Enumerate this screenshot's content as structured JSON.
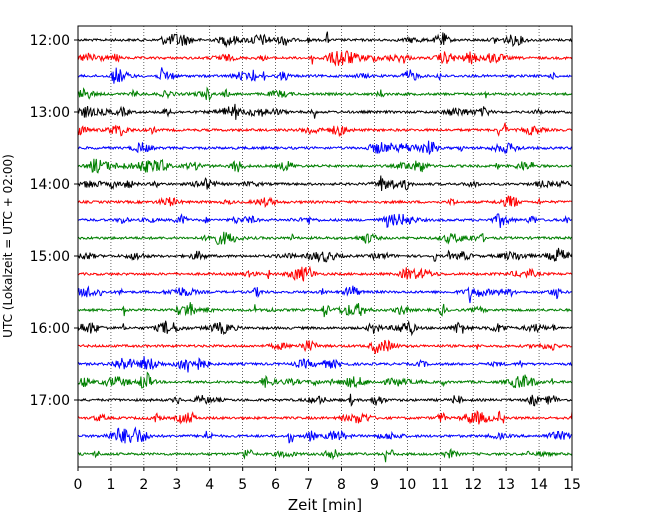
{
  "chart_data": {
    "type": "line",
    "title": "",
    "xlabel": "Zeit  [min]",
    "ylabel": "UTC (Lokalzeit = UTC + 02:00)",
    "xlim": [
      0,
      15
    ],
    "x_ticks": [
      0,
      1,
      2,
      3,
      4,
      5,
      6,
      7,
      8,
      9,
      10,
      11,
      12,
      13,
      14,
      15
    ],
    "y_tick_labels": [
      "12:00",
      "13:00",
      "14:00",
      "15:00",
      "16:00",
      "17:00"
    ],
    "grid": "vertical dotted at each minute",
    "trace_interval_min": 15,
    "trace_colors": [
      "#000000",
      "#ff0000",
      "#0000ff",
      "#008000"
    ],
    "traces": [
      {
        "start": "12:00",
        "color": "#000000"
      },
      {
        "start": "12:15",
        "color": "#ff0000"
      },
      {
        "start": "12:30",
        "color": "#0000ff"
      },
      {
        "start": "12:45",
        "color": "#008000"
      },
      {
        "start": "13:00",
        "color": "#000000"
      },
      {
        "start": "13:15",
        "color": "#ff0000"
      },
      {
        "start": "13:30",
        "color": "#0000ff"
      },
      {
        "start": "13:45",
        "color": "#008000"
      },
      {
        "start": "14:00",
        "color": "#000000"
      },
      {
        "start": "14:15",
        "color": "#ff0000"
      },
      {
        "start": "14:30",
        "color": "#0000ff"
      },
      {
        "start": "14:45",
        "color": "#008000"
      },
      {
        "start": "15:00",
        "color": "#000000"
      },
      {
        "start": "15:15",
        "color": "#ff0000"
      },
      {
        "start": "15:30",
        "color": "#0000ff"
      },
      {
        "start": "15:45",
        "color": "#008000"
      },
      {
        "start": "16:00",
        "color": "#000000"
      },
      {
        "start": "16:15",
        "color": "#ff0000"
      },
      {
        "start": "16:30",
        "color": "#0000ff"
      },
      {
        "start": "16:45",
        "color": "#008000"
      },
      {
        "start": "17:00",
        "color": "#000000"
      },
      {
        "start": "17:15",
        "color": "#ff0000"
      },
      {
        "start": "17:30",
        "color": "#0000ff"
      },
      {
        "start": "17:45",
        "color": "#008000"
      }
    ]
  }
}
